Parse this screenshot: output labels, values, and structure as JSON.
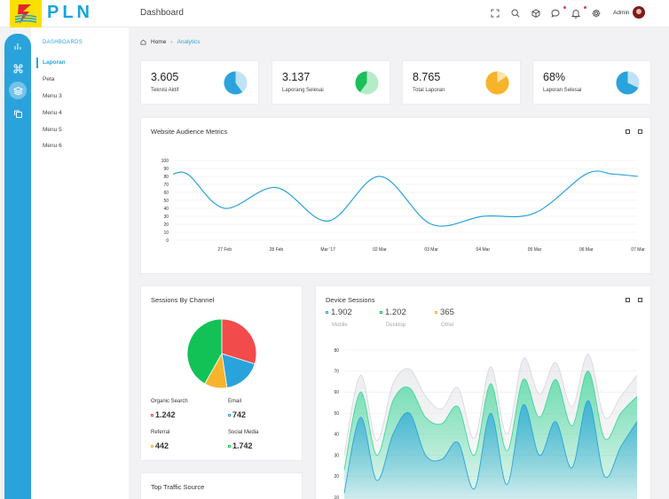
{
  "brand": {
    "name": "PLN"
  },
  "header": {
    "title": "Dashboard",
    "user_name": "Admin",
    "icons": [
      "fullscreen-icon",
      "search-icon",
      "cube-icon",
      "chat-icon",
      "bell-icon",
      "gear-icon"
    ]
  },
  "sidebar": {
    "section": "DASHBOARDS",
    "items": [
      {
        "label": "Laporan"
      },
      {
        "label": "Peta"
      },
      {
        "label": "Menu 3"
      },
      {
        "label": "Menu 4"
      },
      {
        "label": "Menu 5"
      },
      {
        "label": "Menu 6"
      }
    ]
  },
  "breadcrumb": {
    "home": "Home",
    "current": "Analytics"
  },
  "stats": [
    {
      "value": "3.605",
      "label": "Teknisi Aktif",
      "percent": 60,
      "color": "#2aa3dc",
      "bg": "#bfe3f4"
    },
    {
      "value": "3.137",
      "label": "Laporang Selesai",
      "percent": 40,
      "color": "#1bbf5a",
      "bg": "#b5ecc8"
    },
    {
      "value": "8.765",
      "label": "Total Laporan",
      "percent": 85,
      "color": "#f7b32b",
      "bg": "#fde3ab"
    },
    {
      "value": "68%",
      "label": "Laporan Selesai",
      "percent": 68,
      "color": "#2aa3dc",
      "bg": "#bfe3f4"
    }
  ],
  "audience": {
    "title": "Website Audience Metrics",
    "chart_data": {
      "type": "line",
      "title": "Website Audience Metrics",
      "categories": [
        "27 Feb",
        "28 Feb",
        "Mar '17",
        "02 Mar",
        "03 Mar",
        "04 Mar",
        "05 Mar",
        "06 Mar",
        "07 Mar"
      ],
      "x": [
        0,
        0.3,
        1,
        2,
        3,
        4,
        5,
        6,
        7,
        8,
        8.5,
        9
      ],
      "values": [
        83,
        82,
        40,
        66,
        24,
        80,
        20,
        30,
        34,
        83,
        83,
        80
      ],
      "ylim": [
        0,
        100
      ],
      "yticks": [
        0,
        10,
        20,
        30,
        40,
        50,
        60,
        70,
        80,
        90,
        100
      ],
      "color": "#2aa3dc"
    }
  },
  "sessions": {
    "title": "Sessions By Channel",
    "chart_data": {
      "type": "pie",
      "labels": [
        "Organic Search",
        "Email",
        "Referral",
        "Social Media"
      ],
      "values": [
        1242,
        742,
        442,
        1742
      ],
      "colors": [
        "#f24b4b",
        "#2aa3dc",
        "#f7b32b",
        "#13c256"
      ]
    },
    "legend": [
      {
        "label": "Organic Search",
        "value": "1.242",
        "color": "#f24b4b"
      },
      {
        "label": "Email",
        "value": "742",
        "color": "#2aa3dc"
      },
      {
        "label": "Referral",
        "value": "442",
        "color": "#f7b32b"
      },
      {
        "label": "Social Media",
        "value": "1.742",
        "color": "#13c256"
      }
    ]
  },
  "device": {
    "title": "Device Sessions",
    "stats": [
      {
        "value": "1.902",
        "label": "Mobile",
        "color": "#2aa3dc"
      },
      {
        "value": "1.202",
        "label": "Desktop",
        "color": "#13c256"
      },
      {
        "value": "365",
        "label": "Other",
        "color": "#f7b32b"
      }
    ],
    "chart_data": {
      "type": "area",
      "ylim": [
        10,
        80
      ],
      "yticks": [
        10,
        20,
        30,
        40,
        50,
        60,
        70,
        80
      ],
      "x": [
        0,
        1,
        2,
        3,
        4,
        5,
        6,
        7,
        8,
        9,
        10,
        11,
        12,
        13,
        14,
        15,
        16,
        17,
        18
      ],
      "series": [
        {
          "name": "Other",
          "color": "#d8d9de",
          "values": [
            30,
            68,
            37,
            64,
            71,
            58,
            52,
            62,
            38,
            72,
            40,
            76,
            59,
            74,
            53,
            78,
            48,
            58,
            68
          ]
        },
        {
          "name": "Desktop",
          "color": "#3fd79a",
          "values": [
            23,
            60,
            30,
            56,
            62,
            48,
            45,
            53,
            30,
            64,
            32,
            66,
            48,
            66,
            44,
            70,
            38,
            50,
            58
          ]
        },
        {
          "name": "Mobile",
          "color": "#2aa3dc",
          "values": [
            12,
            48,
            18,
            40,
            50,
            30,
            28,
            36,
            14,
            50,
            16,
            54,
            30,
            46,
            24,
            56,
            20,
            34,
            46
          ]
        }
      ]
    }
  },
  "traffic": {
    "title": "Top Traffic Source"
  }
}
